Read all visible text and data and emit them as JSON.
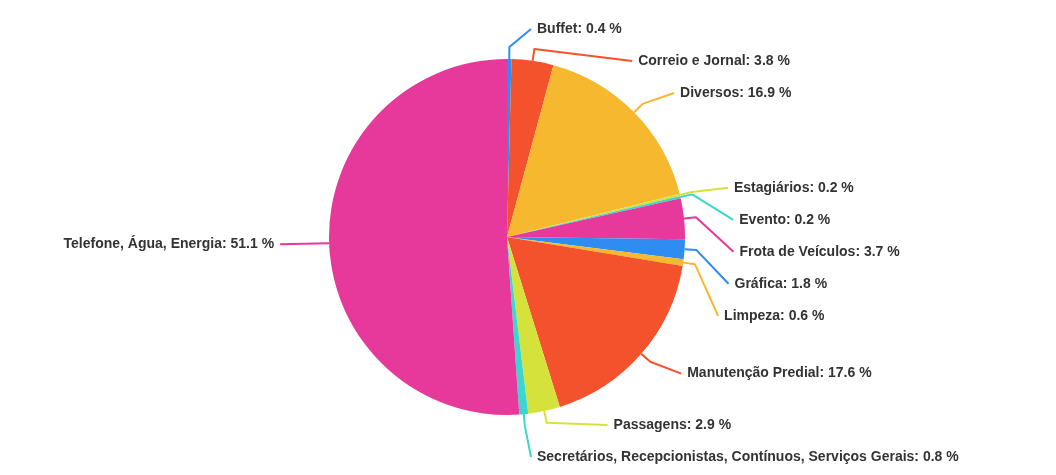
{
  "chart_data": {
    "type": "pie",
    "categories": [
      "Buffet",
      "Correio e Jornal",
      "Diversos",
      "Estagiários",
      "Evento",
      "Frota de Veículos",
      "Gráfica",
      "Limpeza",
      "Manutenção Predial",
      "Passagens",
      "Secretários, Recepcionistas, Contínuos, Serviços Gerais",
      "Telefone, Água, Energia"
    ],
    "values": [
      0.4,
      3.8,
      16.9,
      0.2,
      0.2,
      3.7,
      1.8,
      0.6,
      17.6,
      2.9,
      0.8,
      51.1
    ],
    "value_labels": [
      "0.4 %",
      "3.8 %",
      "16.9 %",
      "0.2 %",
      "0.2 %",
      "3.7 %",
      "1.8 %",
      "0.6 %",
      "17.6 %",
      "2.9 %",
      "0.8 %",
      "51.1 %"
    ],
    "colors": [
      "#2f8cf0",
      "#f4522d",
      "#f5b82e",
      "#d6e23c",
      "#3cd6d0",
      "#e6399b",
      "#2f8cf0",
      "#f5b82e",
      "#f4522d",
      "#d6e23c",
      "#3cd6d0",
      "#e6399b"
    ],
    "legend": false
  }
}
